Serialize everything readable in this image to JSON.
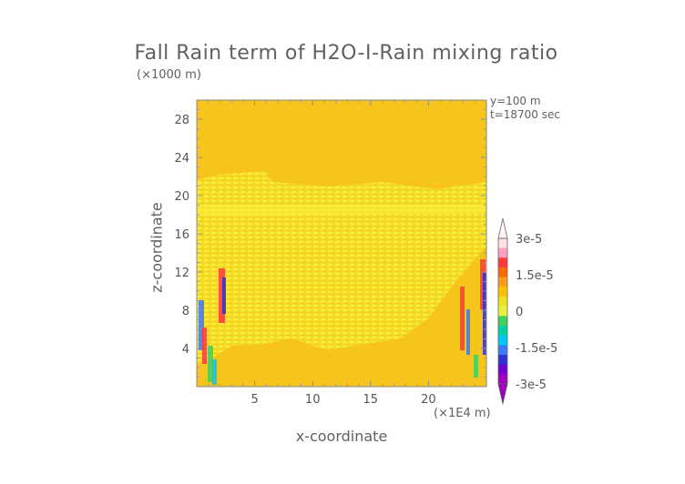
{
  "chart_data": {
    "type": "heatmap",
    "title": "Fall Rain term of H2O-I-Rain mixing ratio",
    "xlabel": "x-coordinate",
    "ylabel": "z-coordinate",
    "x_unit": "(×1E4 m)",
    "y_unit": "(×1000 m)",
    "annotations": [
      "y=100 m",
      "t=18700 sec"
    ],
    "xlim": [
      0,
      25
    ],
    "ylim": [
      0,
      30
    ],
    "x_ticks": [
      5,
      10,
      15,
      20
    ],
    "y_ticks": [
      4,
      8,
      12,
      16,
      20,
      24,
      28
    ],
    "background_value": 0,
    "colorbar": {
      "labels": [
        "3e-5",
        "1.5e-5",
        "0",
        "-1.5e-5",
        "-3e-5"
      ],
      "label_values": [
        3e-05,
        1.5e-05,
        0,
        -1.5e-05,
        -3e-05
      ],
      "colors": [
        "#ffe0e0",
        "#ff9fbf",
        "#ff3a3a",
        "#ff6a00",
        "#ff9a1a",
        "#ffc200",
        "#f0e020",
        "#e8f040",
        "#40d060",
        "#00d0a0",
        "#00c8ff",
        "#3a7aff",
        "#3030d0",
        "#7000d0",
        "#a000c0"
      ]
    }
  }
}
